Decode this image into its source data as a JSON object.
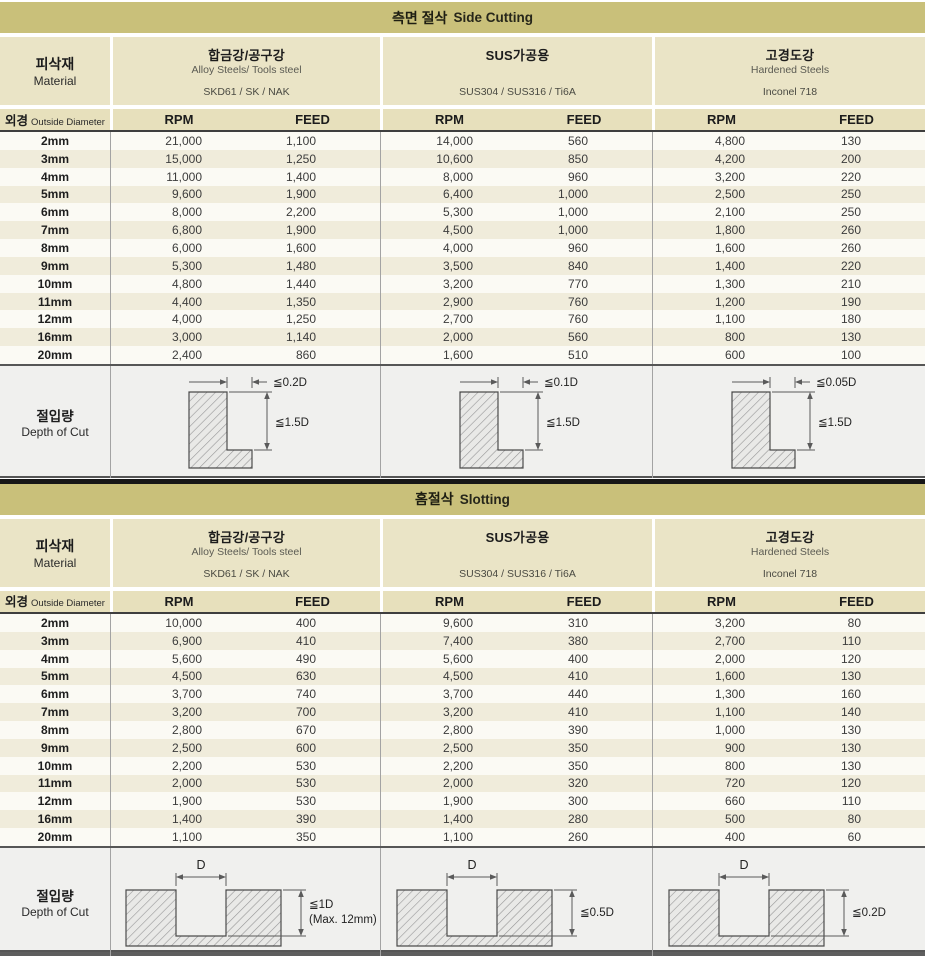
{
  "colors": {
    "title_bar_olive": "#c9c07a",
    "header_beige": "#eae4c6",
    "cols_header_beige": "#e7e0bc",
    "row_stripe_beige": "#f0ecdb",
    "row_white": "#fbfaf4",
    "depth_row_gray": "#f0f0ee",
    "dark_border": "#565656",
    "black_separator": "#161616"
  },
  "sections": [
    {
      "title_ko": "측면 절삭",
      "title_en": "Side Cutting",
      "material_label_ko": "피삭재",
      "material_label_en": "Material",
      "diameter_label_ko": "외경",
      "diameter_label_en": "Outside Diameter",
      "col_rpm": "RPM",
      "col_feed": "FEED",
      "materials": [
        {
          "name_ko": "합금강/공구강",
          "name_en": "Alloy Steels/ Tools steel",
          "grades": "SKD61 / SK / NAK"
        },
        {
          "name_ko": "SUS가공용",
          "name_en": "",
          "grades": "SUS304 / SUS316 / Ti6A"
        },
        {
          "name_ko": "고경도강",
          "name_en": "Hardened Steels",
          "grades": "Inconel 718"
        }
      ],
      "rows": [
        {
          "d": "2mm",
          "v": [
            "21,000",
            "1,100",
            "14,000",
            "560",
            "4,800",
            "130"
          ]
        },
        {
          "d": "3mm",
          "v": [
            "15,000",
            "1,250",
            "10,600",
            "850",
            "4,200",
            "200"
          ]
        },
        {
          "d": "4mm",
          "v": [
            "11,000",
            "1,400",
            "8,000",
            "960",
            "3,200",
            "220"
          ]
        },
        {
          "d": "5mm",
          "v": [
            "9,600",
            "1,900",
            "6,400",
            "1,000",
            "2,500",
            "250"
          ]
        },
        {
          "d": "6mm",
          "v": [
            "8,000",
            "2,200",
            "5,300",
            "1,000",
            "2,100",
            "250"
          ]
        },
        {
          "d": "7mm",
          "v": [
            "6,800",
            "1,900",
            "4,500",
            "1,000",
            "1,800",
            "260"
          ]
        },
        {
          "d": "8mm",
          "v": [
            "6,000",
            "1,600",
            "4,000",
            "960",
            "1,600",
            "260"
          ]
        },
        {
          "d": "9mm",
          "v": [
            "5,300",
            "1,480",
            "3,500",
            "840",
            "1,400",
            "220"
          ]
        },
        {
          "d": "10mm",
          "v": [
            "4,800",
            "1,440",
            "3,200",
            "770",
            "1,300",
            "210"
          ]
        },
        {
          "d": "11mm",
          "v": [
            "4,400",
            "1,350",
            "2,900",
            "760",
            "1,200",
            "190"
          ]
        },
        {
          "d": "12mm",
          "v": [
            "4,000",
            "1,250",
            "2,700",
            "760",
            "1,100",
            "180"
          ]
        },
        {
          "d": "16mm",
          "v": [
            "3,000",
            "1,140",
            "2,000",
            "560",
            "800",
            "130"
          ]
        },
        {
          "d": "20mm",
          "v": [
            "2,400",
            "860",
            "1,600",
            "510",
            "600",
            "100"
          ]
        }
      ],
      "depth_label_ko": "절입량",
      "depth_label_en": "Depth of Cut",
      "depth_diagrams": [
        {
          "width_label": "≦0.2D",
          "depth_label": "≦1.5D"
        },
        {
          "width_label": "≦0.1D",
          "depth_label": "≦1.5D"
        },
        {
          "width_label": "≦0.05D",
          "depth_label": "≦1.5D"
        }
      ]
    },
    {
      "title_ko": "홈절삭",
      "title_en": "Slotting",
      "material_label_ko": "피삭재",
      "material_label_en": "Material",
      "diameter_label_ko": "외경",
      "diameter_label_en": "Outside Diameter",
      "col_rpm": "RPM",
      "col_feed": "FEED",
      "materials": [
        {
          "name_ko": "합금강/공구강",
          "name_en": "Alloy Steels/ Tools steel",
          "grades": "SKD61 / SK / NAK"
        },
        {
          "name_ko": "SUS가공용",
          "name_en": "",
          "grades": "SUS304 / SUS316 / Ti6A"
        },
        {
          "name_ko": "고경도강",
          "name_en": "Hardened Steels",
          "grades": "Inconel 718"
        }
      ],
      "rows": [
        {
          "d": "2mm",
          "v": [
            "10,000",
            "400",
            "9,600",
            "310",
            "3,200",
            "80"
          ]
        },
        {
          "d": "3mm",
          "v": [
            "6,900",
            "410",
            "7,400",
            "380",
            "2,700",
            "110"
          ]
        },
        {
          "d": "4mm",
          "v": [
            "5,600",
            "490",
            "5,600",
            "400",
            "2,000",
            "120"
          ]
        },
        {
          "d": "5mm",
          "v": [
            "4,500",
            "630",
            "4,500",
            "410",
            "1,600",
            "130"
          ]
        },
        {
          "d": "6mm",
          "v": [
            "3,700",
            "740",
            "3,700",
            "440",
            "1,300",
            "160"
          ]
        },
        {
          "d": "7mm",
          "v": [
            "3,200",
            "700",
            "3,200",
            "410",
            "1,100",
            "140"
          ]
        },
        {
          "d": "8mm",
          "v": [
            "2,800",
            "670",
            "2,800",
            "390",
            "1,000",
            "130"
          ]
        },
        {
          "d": "9mm",
          "v": [
            "2,500",
            "600",
            "2,500",
            "350",
            "900",
            "130"
          ]
        },
        {
          "d": "10mm",
          "v": [
            "2,200",
            "530",
            "2,200",
            "350",
            "800",
            "130"
          ]
        },
        {
          "d": "11mm",
          "v": [
            "2,000",
            "530",
            "2,000",
            "320",
            "720",
            "120"
          ]
        },
        {
          "d": "12mm",
          "v": [
            "1,900",
            "530",
            "1,900",
            "300",
            "660",
            "110"
          ]
        },
        {
          "d": "16mm",
          "v": [
            "1,400",
            "390",
            "1,400",
            "280",
            "500",
            "80"
          ]
        },
        {
          "d": "20mm",
          "v": [
            "1,100",
            "350",
            "1,100",
            "260",
            "400",
            "60"
          ]
        }
      ],
      "depth_label_ko": "절입량",
      "depth_label_en": "Depth of Cut",
      "depth_diagrams": [
        {
          "top_label": "D",
          "depth_label": "≦1D",
          "depth_label2": "(Max. 12mm)"
        },
        {
          "top_label": "D",
          "depth_label": "≦0.5D",
          "depth_label2": ""
        },
        {
          "top_label": "D",
          "depth_label": "≦0.2D",
          "depth_label2": ""
        }
      ]
    }
  ]
}
